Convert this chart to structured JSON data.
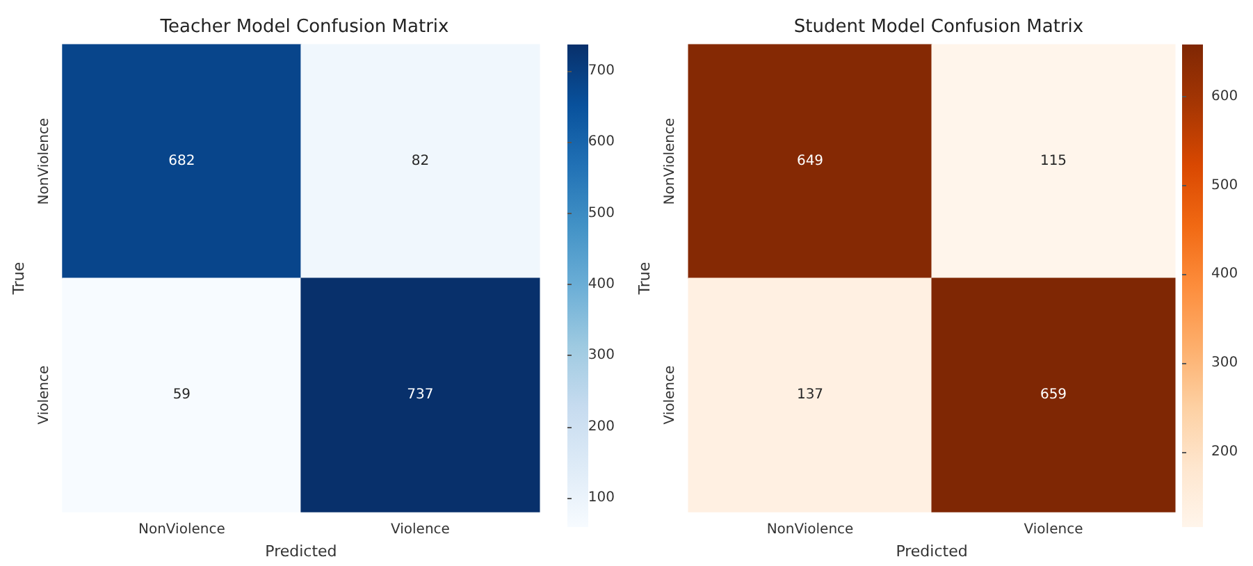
{
  "chart_data": [
    {
      "type": "heatmap",
      "title": "Teacher Model Confusion Matrix",
      "xlabel": "Predicted",
      "ylabel": "True",
      "categories": [
        "NonViolence",
        "Violence"
      ],
      "y_categories": [
        "NonViolence",
        "Violence"
      ],
      "cells": [
        [
          682,
          82
        ],
        [
          59,
          737
        ]
      ],
      "clim": [
        59,
        737
      ],
      "cticks": [
        100,
        200,
        300,
        400,
        500,
        600,
        700
      ],
      "data_labels": true
    },
    {
      "type": "heatmap",
      "title": "Student Model Confusion Matrix",
      "xlabel": "Predicted",
      "ylabel": "True",
      "categories": [
        "NonViolence",
        "Violence"
      ],
      "y_categories": [
        "NonViolence",
        "Violence"
      ],
      "cells": [
        [
          649,
          115
        ],
        [
          137,
          659
        ]
      ],
      "clim": [
        115,
        659
      ],
      "cticks": [
        200,
        300,
        400,
        500,
        600
      ],
      "data_labels": true
    }
  ]
}
